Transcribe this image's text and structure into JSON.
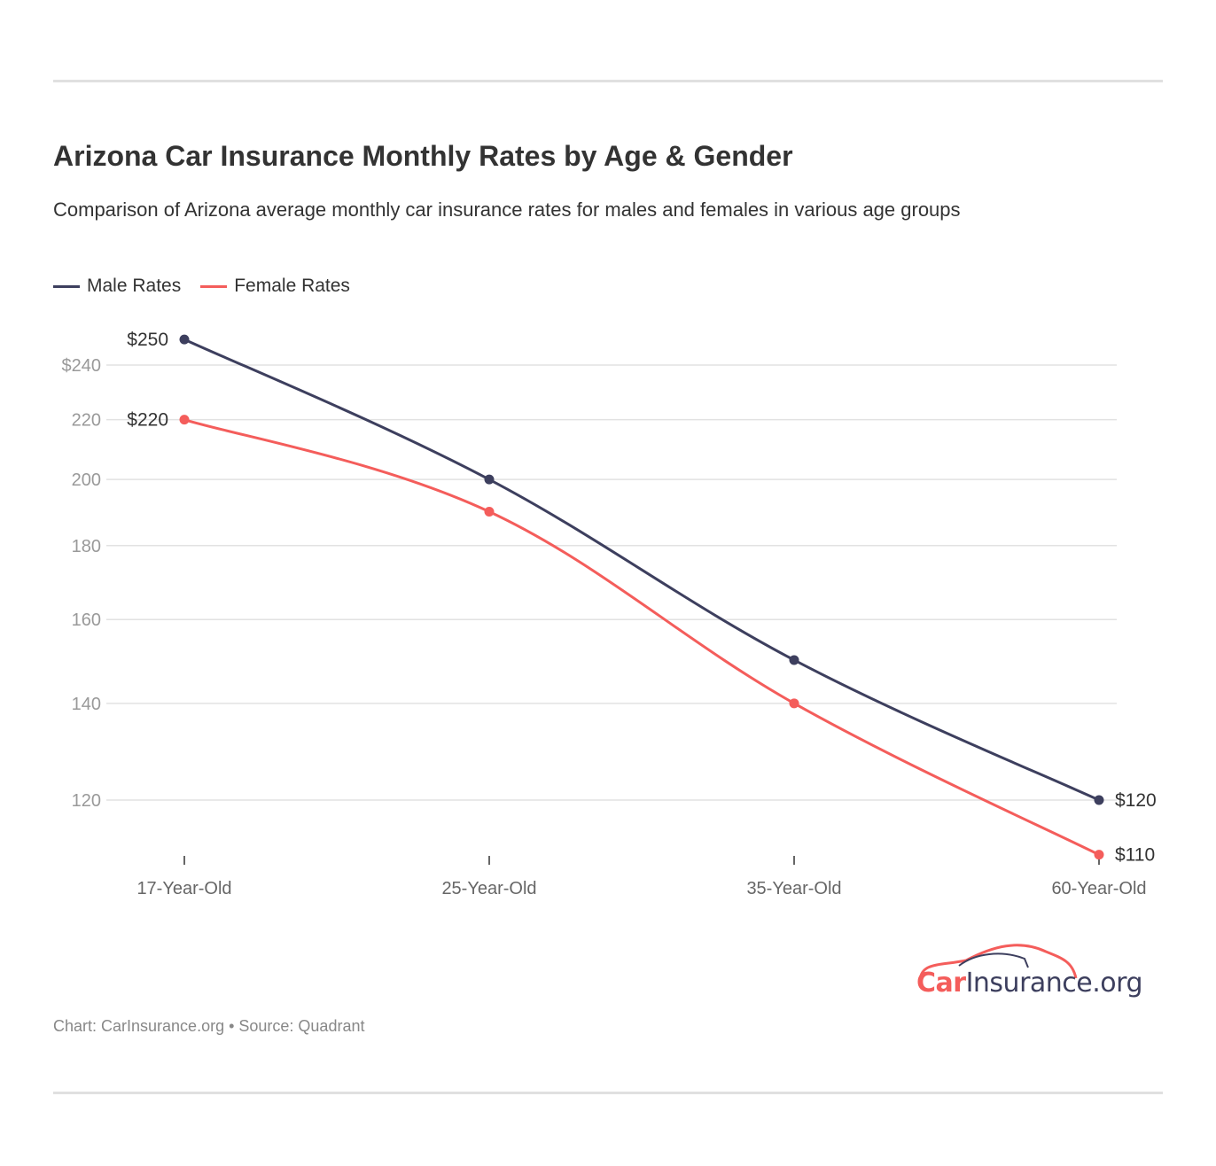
{
  "chart_data": {
    "type": "line",
    "title": "Arizona Car Insurance Monthly Rates by Age & Gender",
    "subtitle": "Comparison of Arizona average monthly car insurance rates for males and females in various age groups",
    "categories": [
      "17-Year-Old",
      "25-Year-Old",
      "35-Year-Old",
      "60-Year-Old"
    ],
    "series": [
      {
        "name": "Male Rates",
        "values": [
          250,
          200,
          150,
          120
        ],
        "color": "#3d3f5e"
      },
      {
        "name": "Female Rates",
        "values": [
          220,
          190,
          140,
          110
        ],
        "color": "#f45d5b"
      }
    ],
    "y_scale": "log",
    "ylim": [
      110,
      250
    ],
    "y_ticks": [
      120,
      140,
      160,
      180,
      200,
      220,
      240
    ],
    "y_tick_labels": [
      "120",
      "140",
      "160",
      "180",
      "200",
      "220",
      "$240"
    ],
    "data_labels": [
      {
        "series": 0,
        "index": 0,
        "text": "$250"
      },
      {
        "series": 1,
        "index": 0,
        "text": "$220"
      },
      {
        "series": 0,
        "index": 3,
        "text": "$120"
      },
      {
        "series": 1,
        "index": 3,
        "text": "$110"
      }
    ],
    "grid": true,
    "legend": "top-left"
  },
  "footer": "Chart: CarInsurance.org • Source: Quadrant",
  "logo": {
    "text": "CarInsurance.org",
    "brand_part_1": "Car",
    "brand_part_2": "Insurance.org"
  }
}
